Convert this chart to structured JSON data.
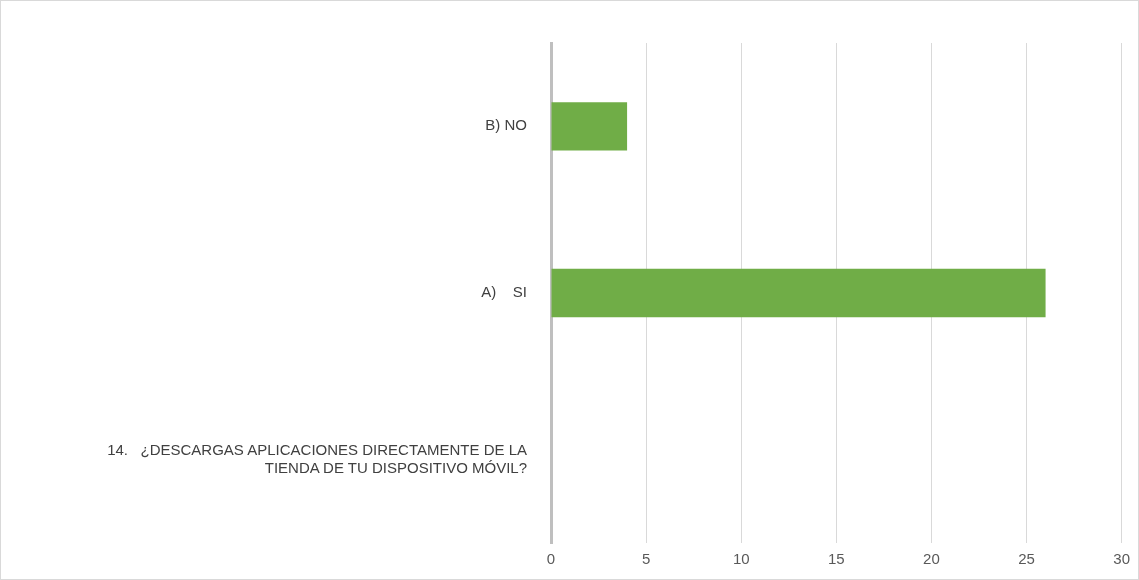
{
  "chart_data": {
    "type": "bar",
    "orientation": "horizontal",
    "categories": [
      "B) NO",
      "A)    SI",
      "14.   ¿DESCARGAS APLICACIONES DIRECTAMENTE DE LA TIENDA DE TU DISPOSITIVO MÓVIL?"
    ],
    "values": [
      4,
      26,
      null
    ],
    "color": "#70ad47",
    "xlim": [
      0,
      30
    ],
    "xticks": [
      0,
      5,
      10,
      15,
      20,
      25,
      30
    ],
    "grid": "x"
  }
}
